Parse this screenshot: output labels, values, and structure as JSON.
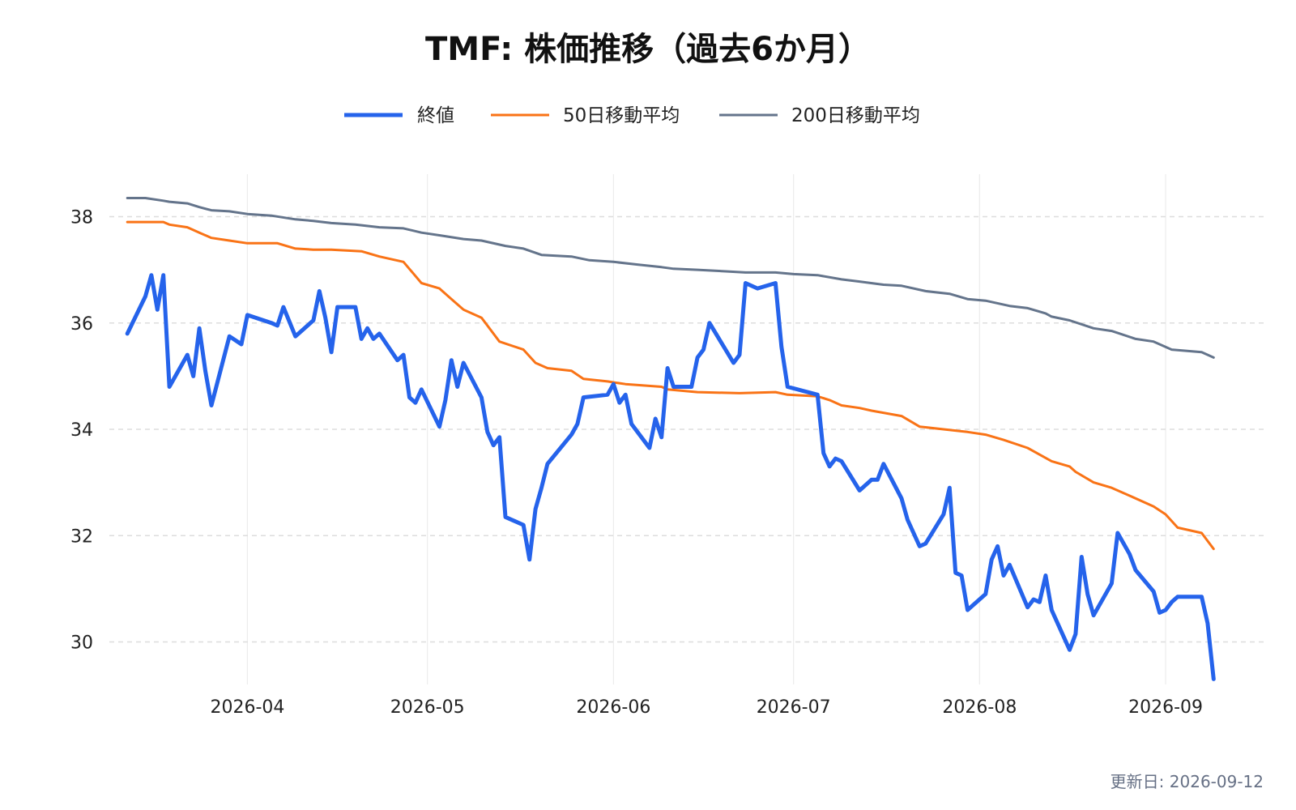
{
  "chart_data": {
    "type": "line",
    "title": "TMF: 株価推移（過去6か月）",
    "xlabel": "",
    "ylabel": "",
    "x_ticks": [
      "2026-04",
      "2026-05",
      "2026-06",
      "2026-07",
      "2026-08",
      "2026-09"
    ],
    "y_ticks": [
      30,
      32,
      34,
      36,
      38
    ],
    "xlim": [
      "2026-03-09",
      "2026-09-18"
    ],
    "ylim": [
      29.2,
      38.8
    ],
    "grid": "horizontal dashed, vertical light",
    "legend_position": "top-center",
    "series": [
      {
        "name": "終値",
        "color": "#2563eb",
        "points": [
          [
            "2026-03-12",
            35.8
          ],
          [
            "2026-03-15",
            36.5
          ],
          [
            "2026-03-16",
            36.9
          ],
          [
            "2026-03-17",
            36.25
          ],
          [
            "2026-03-18",
            36.9
          ],
          [
            "2026-03-19",
            34.8
          ],
          [
            "2026-03-22",
            35.4
          ],
          [
            "2026-03-23",
            35.0
          ],
          [
            "2026-03-24",
            35.9
          ],
          [
            "2026-03-25",
            35.1
          ],
          [
            "2026-03-26",
            34.45
          ],
          [
            "2026-03-29",
            35.75
          ],
          [
            "2026-03-31",
            35.6
          ],
          [
            "2026-04-01",
            36.15
          ],
          [
            "2026-04-05",
            36.0
          ],
          [
            "2026-04-06",
            35.95
          ],
          [
            "2026-04-07",
            36.3
          ],
          [
            "2026-04-09",
            35.75
          ],
          [
            "2026-04-12",
            36.05
          ],
          [
            "2026-04-13",
            36.6
          ],
          [
            "2026-04-14",
            36.1
          ],
          [
            "2026-04-15",
            35.45
          ],
          [
            "2026-04-16",
            36.3
          ],
          [
            "2026-04-19",
            36.3
          ],
          [
            "2026-04-20",
            35.7
          ],
          [
            "2026-04-21",
            35.9
          ],
          [
            "2026-04-22",
            35.7
          ],
          [
            "2026-04-23",
            35.8
          ],
          [
            "2026-04-26",
            35.3
          ],
          [
            "2026-04-27",
            35.4
          ],
          [
            "2026-04-28",
            34.6
          ],
          [
            "2026-04-29",
            34.5
          ],
          [
            "2026-04-30",
            34.75
          ],
          [
            "2026-05-03",
            34.05
          ],
          [
            "2026-05-04",
            34.55
          ],
          [
            "2026-05-05",
            35.3
          ],
          [
            "2026-05-06",
            34.8
          ],
          [
            "2026-05-07",
            35.25
          ],
          [
            "2026-05-10",
            34.6
          ],
          [
            "2026-05-11",
            33.95
          ],
          [
            "2026-05-12",
            33.7
          ],
          [
            "2026-05-13",
            33.85
          ],
          [
            "2026-05-14",
            32.35
          ],
          [
            "2026-05-17",
            32.2
          ],
          [
            "2026-05-18",
            31.55
          ],
          [
            "2026-05-19",
            32.5
          ],
          [
            "2026-05-20",
            32.9
          ],
          [
            "2026-05-21",
            33.35
          ],
          [
            "2026-05-25",
            33.9
          ],
          [
            "2026-05-26",
            34.1
          ],
          [
            "2026-05-27",
            34.6
          ],
          [
            "2026-05-31",
            34.65
          ],
          [
            "2026-06-01",
            34.85
          ],
          [
            "2026-06-02",
            34.5
          ],
          [
            "2026-06-03",
            34.65
          ],
          [
            "2026-06-04",
            34.1
          ],
          [
            "2026-06-07",
            33.65
          ],
          [
            "2026-06-08",
            34.2
          ],
          [
            "2026-06-09",
            33.85
          ],
          [
            "2026-06-10",
            35.15
          ],
          [
            "2026-06-11",
            34.8
          ],
          [
            "2026-06-14",
            34.8
          ],
          [
            "2026-06-15",
            35.35
          ],
          [
            "2026-06-16",
            35.5
          ],
          [
            "2026-06-17",
            36.0
          ],
          [
            "2026-06-21",
            35.25
          ],
          [
            "2026-06-22",
            35.4
          ],
          [
            "2026-06-23",
            36.75
          ],
          [
            "2026-06-25",
            36.65
          ],
          [
            "2026-06-28",
            36.75
          ],
          [
            "2026-06-29",
            35.55
          ],
          [
            "2026-06-30",
            34.8
          ],
          [
            "2026-07-05",
            34.65
          ],
          [
            "2026-07-06",
            33.55
          ],
          [
            "2026-07-07",
            33.3
          ],
          [
            "2026-07-08",
            33.45
          ],
          [
            "2026-07-09",
            33.4
          ],
          [
            "2026-07-12",
            32.85
          ],
          [
            "2026-07-14",
            33.05
          ],
          [
            "2026-07-15",
            33.05
          ],
          [
            "2026-07-16",
            33.35
          ],
          [
            "2026-07-19",
            32.7
          ],
          [
            "2026-07-20",
            32.3
          ],
          [
            "2026-07-22",
            31.8
          ],
          [
            "2026-07-23",
            31.85
          ],
          [
            "2026-07-26",
            32.4
          ],
          [
            "2026-07-27",
            32.9
          ],
          [
            "2026-07-28",
            31.3
          ],
          [
            "2026-07-29",
            31.25
          ],
          [
            "2026-07-30",
            30.6
          ],
          [
            "2026-08-02",
            30.9
          ],
          [
            "2026-08-03",
            31.55
          ],
          [
            "2026-08-04",
            31.8
          ],
          [
            "2026-08-05",
            31.25
          ],
          [
            "2026-08-06",
            31.45
          ],
          [
            "2026-08-09",
            30.65
          ],
          [
            "2026-08-10",
            30.8
          ],
          [
            "2026-08-11",
            30.75
          ],
          [
            "2026-08-12",
            31.25
          ],
          [
            "2026-08-13",
            30.6
          ],
          [
            "2026-08-16",
            29.85
          ],
          [
            "2026-08-17",
            30.15
          ],
          [
            "2026-08-18",
            31.6
          ],
          [
            "2026-08-19",
            30.9
          ],
          [
            "2026-08-20",
            30.5
          ],
          [
            "2026-08-23",
            31.1
          ],
          [
            "2026-08-24",
            32.05
          ],
          [
            "2026-08-26",
            31.65
          ],
          [
            "2026-08-27",
            31.35
          ],
          [
            "2026-08-30",
            30.95
          ],
          [
            "2026-08-31",
            30.55
          ],
          [
            "2026-09-01",
            30.6
          ],
          [
            "2026-09-02",
            30.75
          ],
          [
            "2026-09-03",
            30.85
          ],
          [
            "2026-09-07",
            30.85
          ],
          [
            "2026-09-08",
            30.35
          ],
          [
            "2026-09-09",
            29.3
          ]
        ]
      },
      {
        "name": "50日移動平均",
        "color": "#f97316",
        "points": [
          [
            "2026-03-12",
            37.9
          ],
          [
            "2026-03-16",
            37.9
          ],
          [
            "2026-03-18",
            37.9
          ],
          [
            "2026-03-19",
            37.85
          ],
          [
            "2026-03-22",
            37.8
          ],
          [
            "2026-03-24",
            37.7
          ],
          [
            "2026-03-26",
            37.6
          ],
          [
            "2026-03-29",
            37.55
          ],
          [
            "2026-04-01",
            37.5
          ],
          [
            "2026-04-06",
            37.5
          ],
          [
            "2026-04-09",
            37.4
          ],
          [
            "2026-04-12",
            37.38
          ],
          [
            "2026-04-15",
            37.38
          ],
          [
            "2026-04-20",
            37.35
          ],
          [
            "2026-04-23",
            37.25
          ],
          [
            "2026-04-27",
            37.15
          ],
          [
            "2026-04-30",
            36.75
          ],
          [
            "2026-05-03",
            36.65
          ],
          [
            "2026-05-05",
            36.45
          ],
          [
            "2026-05-07",
            36.25
          ],
          [
            "2026-05-10",
            36.1
          ],
          [
            "2026-05-13",
            35.65
          ],
          [
            "2026-05-17",
            35.5
          ],
          [
            "2026-05-19",
            35.25
          ],
          [
            "2026-05-21",
            35.15
          ],
          [
            "2026-05-25",
            35.1
          ],
          [
            "2026-05-27",
            34.95
          ],
          [
            "2026-05-31",
            34.9
          ],
          [
            "2026-06-03",
            34.85
          ],
          [
            "2026-06-09",
            34.8
          ],
          [
            "2026-06-10",
            34.75
          ],
          [
            "2026-06-15",
            34.7
          ],
          [
            "2026-06-22",
            34.68
          ],
          [
            "2026-06-28",
            34.7
          ],
          [
            "2026-06-30",
            34.65
          ],
          [
            "2026-07-05",
            34.62
          ],
          [
            "2026-07-07",
            34.55
          ],
          [
            "2026-07-09",
            34.45
          ],
          [
            "2026-07-12",
            34.4
          ],
          [
            "2026-07-14",
            34.35
          ],
          [
            "2026-07-19",
            34.25
          ],
          [
            "2026-07-22",
            34.05
          ],
          [
            "2026-07-26",
            34.0
          ],
          [
            "2026-07-30",
            33.95
          ],
          [
            "2026-08-02",
            33.9
          ],
          [
            "2026-08-05",
            33.8
          ],
          [
            "2026-08-09",
            33.65
          ],
          [
            "2026-08-13",
            33.4
          ],
          [
            "2026-08-16",
            33.3
          ],
          [
            "2026-08-17",
            33.2
          ],
          [
            "2026-08-20",
            33.0
          ],
          [
            "2026-08-23",
            32.9
          ],
          [
            "2026-08-26",
            32.75
          ],
          [
            "2026-08-30",
            32.55
          ],
          [
            "2026-09-01",
            32.4
          ],
          [
            "2026-09-03",
            32.15
          ],
          [
            "2026-09-07",
            32.05
          ],
          [
            "2026-09-09",
            31.75
          ]
        ]
      },
      {
        "name": "200日移動平均",
        "color": "#64748b",
        "points": [
          [
            "2026-03-12",
            38.35
          ],
          [
            "2026-03-15",
            38.35
          ],
          [
            "2026-03-18",
            38.3
          ],
          [
            "2026-03-19",
            38.28
          ],
          [
            "2026-03-22",
            38.25
          ],
          [
            "2026-03-24",
            38.18
          ],
          [
            "2026-03-26",
            38.12
          ],
          [
            "2026-03-29",
            38.1
          ],
          [
            "2026-04-01",
            38.05
          ],
          [
            "2026-04-05",
            38.02
          ],
          [
            "2026-04-09",
            37.95
          ],
          [
            "2026-04-12",
            37.92
          ],
          [
            "2026-04-15",
            37.88
          ],
          [
            "2026-04-19",
            37.85
          ],
          [
            "2026-04-23",
            37.8
          ],
          [
            "2026-04-27",
            37.78
          ],
          [
            "2026-04-30",
            37.7
          ],
          [
            "2026-05-03",
            37.65
          ],
          [
            "2026-05-07",
            37.58
          ],
          [
            "2026-05-10",
            37.55
          ],
          [
            "2026-05-14",
            37.45
          ],
          [
            "2026-05-17",
            37.4
          ],
          [
            "2026-05-20",
            37.28
          ],
          [
            "2026-05-25",
            37.25
          ],
          [
            "2026-05-28",
            37.18
          ],
          [
            "2026-06-01",
            37.15
          ],
          [
            "2026-06-05",
            37.1
          ],
          [
            "2026-06-09",
            37.05
          ],
          [
            "2026-06-11",
            37.02
          ],
          [
            "2026-06-15",
            37.0
          ],
          [
            "2026-06-20",
            36.97
          ],
          [
            "2026-06-23",
            36.95
          ],
          [
            "2026-06-28",
            36.95
          ],
          [
            "2026-07-01",
            36.92
          ],
          [
            "2026-07-05",
            36.9
          ],
          [
            "2026-07-09",
            36.82
          ],
          [
            "2026-07-12",
            36.78
          ],
          [
            "2026-07-16",
            36.72
          ],
          [
            "2026-07-19",
            36.7
          ],
          [
            "2026-07-23",
            36.6
          ],
          [
            "2026-07-27",
            36.55
          ],
          [
            "2026-07-30",
            36.45
          ],
          [
            "2026-08-02",
            36.42
          ],
          [
            "2026-08-06",
            36.32
          ],
          [
            "2026-08-09",
            36.28
          ],
          [
            "2026-08-12",
            36.18
          ],
          [
            "2026-08-13",
            36.12
          ],
          [
            "2026-08-16",
            36.05
          ],
          [
            "2026-08-20",
            35.9
          ],
          [
            "2026-08-23",
            35.85
          ],
          [
            "2026-08-27",
            35.7
          ],
          [
            "2026-08-30",
            35.65
          ],
          [
            "2026-09-02",
            35.5
          ],
          [
            "2026-09-07",
            35.45
          ],
          [
            "2026-09-09",
            35.35
          ]
        ]
      }
    ]
  },
  "footer": {
    "updated_label": "更新日: 2026-09-12"
  }
}
